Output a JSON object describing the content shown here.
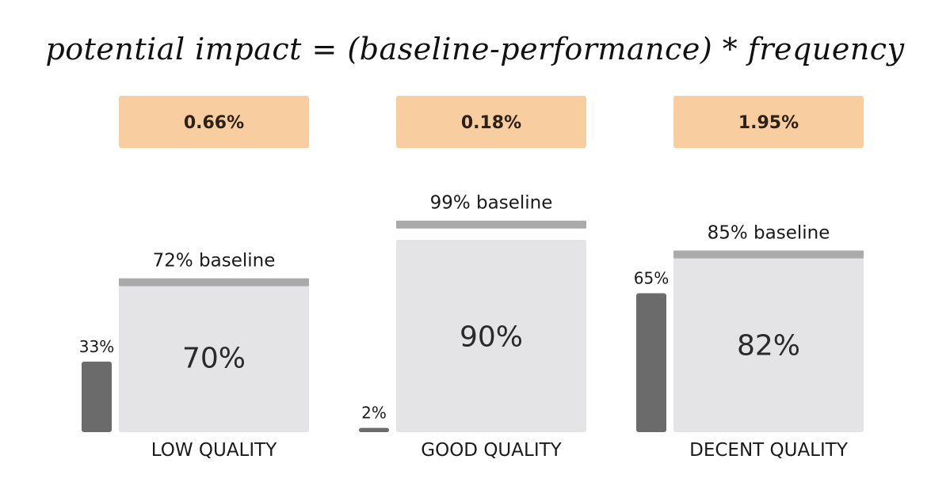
{
  "formula": "potential impact = (baseline-performance) * frequency",
  "colors": {
    "impact_box": "#f8cda0",
    "baseline_bar": "#aaaaaa",
    "performance_box": "#e4e4e6",
    "frequency_bar": "#6b6b6b"
  },
  "chart_data": {
    "type": "bar",
    "title": "",
    "categories": [
      "LOW QUALITY",
      "GOOD QUALITY",
      "DECENT QUALITY"
    ],
    "series": [
      {
        "name": "frequency",
        "values": [
          33,
          2,
          65
        ]
      },
      {
        "name": "baseline",
        "values": [
          72,
          99,
          85
        ]
      },
      {
        "name": "performance",
        "values": [
          70,
          90,
          82
        ]
      },
      {
        "name": "potential impact",
        "values": [
          0.66,
          0.18,
          1.95
        ]
      }
    ],
    "labels": {
      "frequency": [
        "33%",
        "2%",
        "65%"
      ],
      "baseline": [
        "72% baseline",
        "99% baseline",
        "85% baseline"
      ],
      "performance": [
        "70%",
        "90%",
        "82%"
      ],
      "impact": [
        "0.66%",
        "0.18%",
        "1.95%"
      ]
    },
    "unit": "%",
    "ylim": [
      0,
      100
    ]
  }
}
